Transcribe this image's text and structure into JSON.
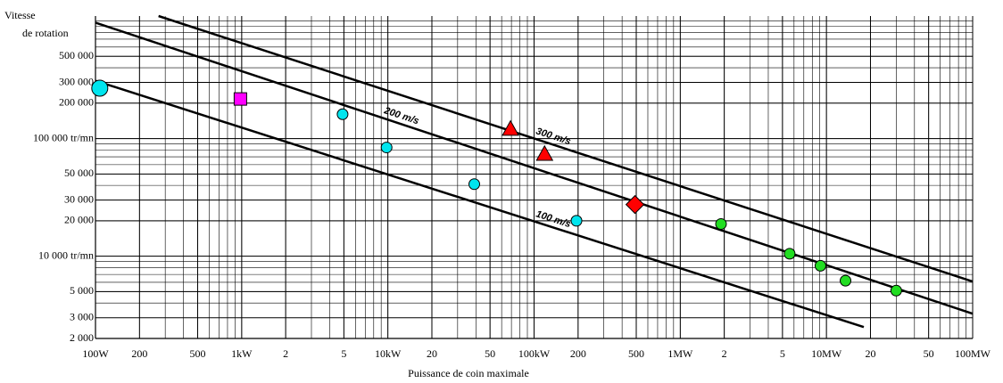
{
  "chart_data": {
    "type": "scatter",
    "y_title_lines": [
      "Vitesse",
      "de rotation"
    ],
    "x_title": "Puissance de coin maximale",
    "xlog": true,
    "ylog": true,
    "grid": true,
    "xlim": [
      100,
      100000000
    ],
    "ylim": [
      2000,
      1100000
    ],
    "xticks": [
      {
        "value": 100,
        "label": "100W"
      },
      {
        "value": 200,
        "label": "200"
      },
      {
        "value": 500,
        "label": "500"
      },
      {
        "value": 1000,
        "label": "1kW"
      },
      {
        "value": 2000,
        "label": "2"
      },
      {
        "value": 5000,
        "label": "5"
      },
      {
        "value": 10000,
        "label": "10kW"
      },
      {
        "value": 20000,
        "label": "20"
      },
      {
        "value": 50000,
        "label": "50"
      },
      {
        "value": 100000,
        "label": "100kW"
      },
      {
        "value": 200000,
        "label": "200"
      },
      {
        "value": 500000,
        "label": "500"
      },
      {
        "value": 1000000,
        "label": "1MW"
      },
      {
        "value": 2000000,
        "label": "2"
      },
      {
        "value": 5000000,
        "label": "5"
      },
      {
        "value": 10000000,
        "label": "10MW"
      },
      {
        "value": 20000000,
        "label": "20"
      },
      {
        "value": 50000000,
        "label": "50"
      },
      {
        "value": 100000000,
        "label": "100MW"
      }
    ],
    "yticks": [
      {
        "value": 500000,
        "label": "500 000"
      },
      {
        "value": 300000,
        "label": "300 000"
      },
      {
        "value": 200000,
        "label": "200 000"
      },
      {
        "value": 100000,
        "label": "100 000 tr/mn"
      },
      {
        "value": 50000,
        "label": "50 000"
      },
      {
        "value": 30000,
        "label": "30 000"
      },
      {
        "value": 20000,
        "label": "20 000"
      },
      {
        "value": 10000,
        "label": "10 000 tr/mn"
      },
      {
        "value": 5000,
        "label": "5 000"
      },
      {
        "value": 3000,
        "label": "3 000"
      },
      {
        "value": 2000,
        "label": "2 000"
      }
    ],
    "lines": [
      {
        "label": "100 m/s",
        "x": [
          100,
          18000000
        ],
        "values": [
          310000,
          2500
        ]
      },
      {
        "label": "200 m/s",
        "x": [
          100,
          100000000
        ],
        "values": [
          966000,
          3250
        ]
      },
      {
        "label": "300 m/s",
        "x": [
          270,
          100000000
        ],
        "values": [
          1100000,
          6100
        ]
      }
    ],
    "series": [
      {
        "marker": "circle",
        "size": 9,
        "color": "#00e5ee",
        "x": [
          107
        ],
        "values": [
          268000
        ]
      },
      {
        "marker": "circle",
        "size": 6,
        "color": "#00e5ee",
        "x": [
          4900,
          9800,
          39000,
          195000
        ],
        "values": [
          161000,
          84000,
          41000,
          20000
        ]
      },
      {
        "marker": "square",
        "size": 7,
        "color": "#ff00ff",
        "x": [
          980
        ],
        "values": [
          217000
        ]
      },
      {
        "marker": "triangle",
        "size": 9,
        "color": "#ff0000",
        "x": [
          69000,
          118000
        ],
        "values": [
          121000,
          74000
        ]
      },
      {
        "marker": "diamond",
        "size": 10,
        "color": "#ff0000",
        "x": [
          490000
        ],
        "values": [
          27500
        ]
      },
      {
        "marker": "circle",
        "size": 6,
        "color": "#22dd22",
        "x": [
          1900000,
          5600000,
          9100000,
          13500000,
          30000000
        ],
        "values": [
          18800,
          10500,
          8300,
          6200,
          5100
        ]
      }
    ]
  }
}
